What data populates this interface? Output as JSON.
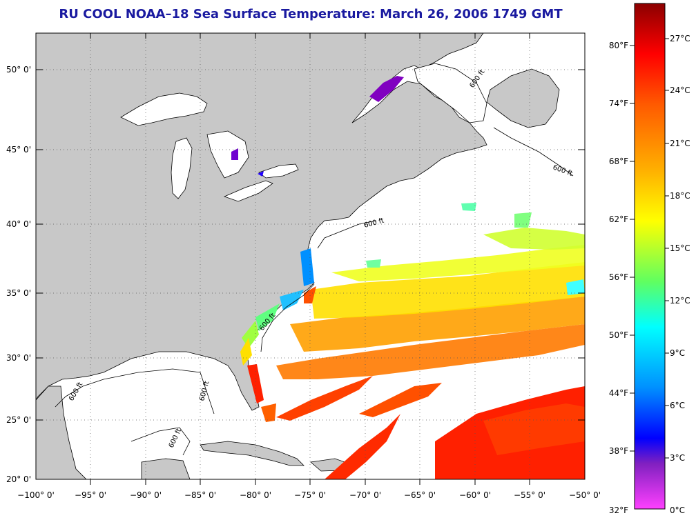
{
  "title": "RU COOL  NOAA–18  Sea Surface Temperature:  March 26, 2006 1749 GMT",
  "map": {
    "lon_labels": [
      "−100° 0'",
      "−95° 0'",
      "−90° 0'",
      "−85° 0'",
      "−80° 0'",
      "−75° 0'",
      "−70° 0'",
      "−65° 0'",
      "−60° 0'",
      "−55° 0'",
      "−50° 0'"
    ],
    "lat_labels": [
      "50° 0'",
      "45° 0'",
      "40° 0'",
      "35° 0'",
      "30° 0'",
      "25° 0'",
      "20° 0'"
    ],
    "isobath_label": "600 ft",
    "colors": {
      "land": "#c8c8c8",
      "ocean_no_data": "#ffffff",
      "frame": "#000000"
    }
  },
  "colorbar": {
    "fahrenheit_labels": [
      "80°F",
      "74°F",
      "68°F",
      "62°F",
      "56°F",
      "50°F",
      "44°F",
      "38°F",
      "32°F"
    ],
    "celsius_labels": [
      "27°C",
      "24°C",
      "21°C",
      "18°C",
      "15°C",
      "12°C",
      "9°C",
      "6°C",
      "3°C",
      "0°C"
    ],
    "gradient_colors": [
      "#8b0000",
      "#ff0000",
      "#ff7f00",
      "#ffd700",
      "#ffff00",
      "#80ff40",
      "#00ffff",
      "#0080ff",
      "#0000ff",
      "#8000c0",
      "#ff40ff"
    ]
  }
}
